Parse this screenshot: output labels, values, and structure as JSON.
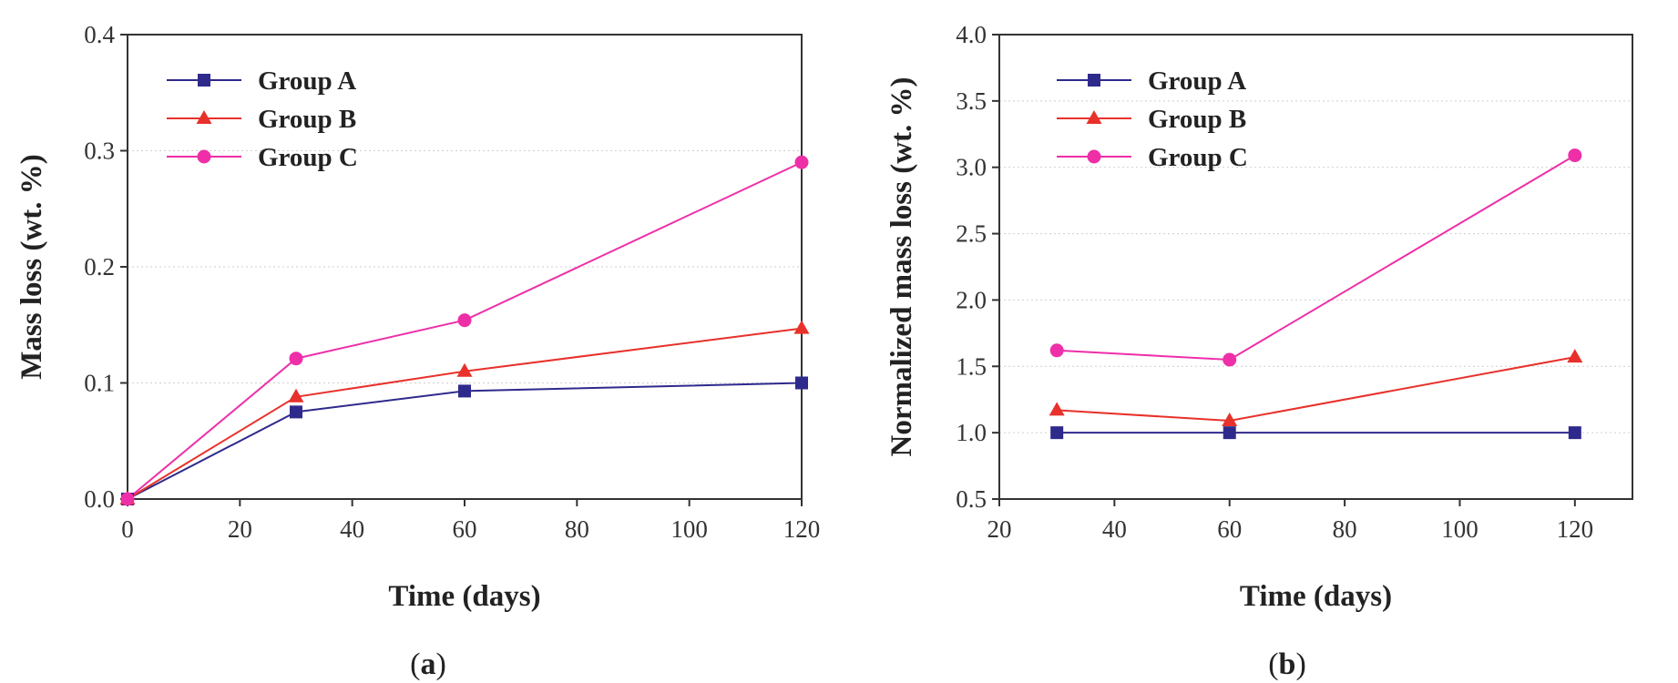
{
  "chart_data": [
    {
      "type": "line",
      "panel_label_open": "(",
      "panel_label": "a",
      "panel_label_close": ")",
      "title": "",
      "xlabel": "Time (days)",
      "ylabel": "Mass loss (wt. %)",
      "xlim": [
        0,
        120
      ],
      "ylim": [
        0,
        0.4
      ],
      "xticks": [
        0,
        20,
        40,
        60,
        80,
        100,
        120
      ],
      "xtick_labels": [
        "0",
        "20",
        "40",
        "60",
        "80",
        "100",
        "120"
      ],
      "yticks": [
        0,
        0.1,
        0.2,
        0.3,
        0.4
      ],
      "ytick_labels": [
        "0.0",
        "0.1",
        "0.2",
        "0.3",
        "0.4"
      ],
      "grid": "horizontal dotted",
      "legend_position": "top-left",
      "x": [
        0,
        30,
        60,
        120
      ],
      "series": [
        {
          "name": "Group A",
          "color": "#2e2a8c",
          "marker": "square",
          "values": [
            0,
            0.075,
            0.093,
            0.1
          ]
        },
        {
          "name": "Group B",
          "color": "#e8312b",
          "marker": "triangle",
          "values": [
            0,
            0.088,
            0.11,
            0.147
          ]
        },
        {
          "name": "Group C",
          "color": "#ee2fa8",
          "marker": "circle",
          "values": [
            0,
            0.121,
            0.154,
            0.29
          ]
        }
      ]
    },
    {
      "type": "line",
      "panel_label_open": "(",
      "panel_label": "b",
      "panel_label_close": ")",
      "title": "",
      "xlabel": "Time (days)",
      "ylabel": "Normalized mass loss (wt. %)",
      "xlim": [
        20,
        130
      ],
      "ylim": [
        0.5,
        4.0
      ],
      "xticks": [
        20,
        40,
        60,
        80,
        100,
        120
      ],
      "xtick_labels": [
        "20",
        "40",
        "60",
        "80",
        "100",
        "120"
      ],
      "yticks": [
        0.5,
        1.0,
        1.5,
        2.0,
        2.5,
        3.0,
        3.5,
        4.0
      ],
      "ytick_labels": [
        "0.5",
        "1.0",
        "1.5",
        "2.0",
        "2.5",
        "3.0",
        "3.5",
        "4.0"
      ],
      "grid": "horizontal dotted",
      "legend_position": "top-left",
      "x": [
        30,
        60,
        120
      ],
      "series": [
        {
          "name": "Group A",
          "color": "#2e2a8c",
          "marker": "square",
          "values": [
            1.0,
            1.0,
            1.0
          ]
        },
        {
          "name": "Group B",
          "color": "#e8312b",
          "marker": "triangle",
          "values": [
            1.17,
            1.09,
            1.57
          ]
        },
        {
          "name": "Group C",
          "color": "#ee2fa8",
          "marker": "circle",
          "values": [
            1.62,
            1.55,
            3.09
          ]
        }
      ]
    }
  ]
}
